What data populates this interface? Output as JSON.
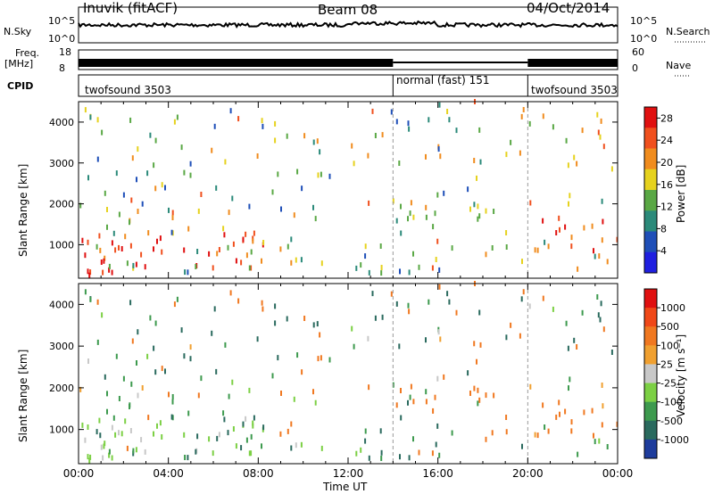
{
  "header": {
    "station": "Inuvik (fitACF)",
    "beam": "Beam 08",
    "date": "04/Oct/2014"
  },
  "top_panels": {
    "nsky_label": "N.Sky",
    "nsearch_label": "N.Search",
    "nsky_ticks": [
      "10^5",
      "10^0"
    ],
    "nsearch_ticks": [
      "10^5",
      "10^0"
    ],
    "freq_label_1": "Freq.",
    "freq_label_2": "[MHz]",
    "freq_ticks": [
      "18",
      "8"
    ],
    "nave_label": "Nave",
    "nave_ticks": [
      "60",
      "0"
    ],
    "cpid_label": "CPID",
    "cpid_segments": [
      {
        "label": "twofsound 3503",
        "start_h": 0,
        "end_h": 14
      },
      {
        "label": "normal (fast) 151",
        "start_h": 14,
        "end_h": 20
      },
      {
        "label": "twofsound 3503",
        "start_h": 20,
        "end_h": 24
      }
    ]
  },
  "chart_data": [
    {
      "type": "heatmap",
      "title": "Power",
      "ylabel": "Slant Range [km]",
      "xlabel": "",
      "xlim": [
        0,
        24
      ],
      "ylim": [
        180,
        4500
      ],
      "yticks": [
        "1000",
        "2000",
        "3000",
        "4000"
      ],
      "colorbar": {
        "label": "Power [dB]",
        "ticks": [
          "4",
          "8",
          "12",
          "16",
          "20",
          "24",
          "28"
        ],
        "range": [
          0,
          30
        ],
        "colors": [
          "#1f1fe0",
          "#1f4fb8",
          "#2b8a7a",
          "#5aa845",
          "#e6d21e",
          "#f08c1e",
          "#f0501e",
          "#e01010"
        ]
      }
    },
    {
      "type": "heatmap",
      "title": "Velocity",
      "ylabel": "Slant Range [km]",
      "xlabel": "Time UT",
      "xlim": [
        0,
        24
      ],
      "ylim": [
        180,
        4500
      ],
      "yticks": [
        "1000",
        "2000",
        "3000",
        "4000"
      ],
      "xticks": [
        "00:00",
        "04:00",
        "08:00",
        "12:00",
        "16:00",
        "20:00",
        "00:00"
      ],
      "colorbar": {
        "label": "Velocity [m s⁻¹]",
        "ticks": [
          "1000",
          "500",
          "100",
          "25",
          "-25",
          "-100",
          "-500",
          "-1000"
        ],
        "colors": [
          "#1e3c9c",
          "#2a6a5e",
          "#3d9a4e",
          "#7cd044",
          "#c8c8c8",
          "#f0a030",
          "#f07820",
          "#f04818",
          "#e01010"
        ]
      }
    }
  ]
}
